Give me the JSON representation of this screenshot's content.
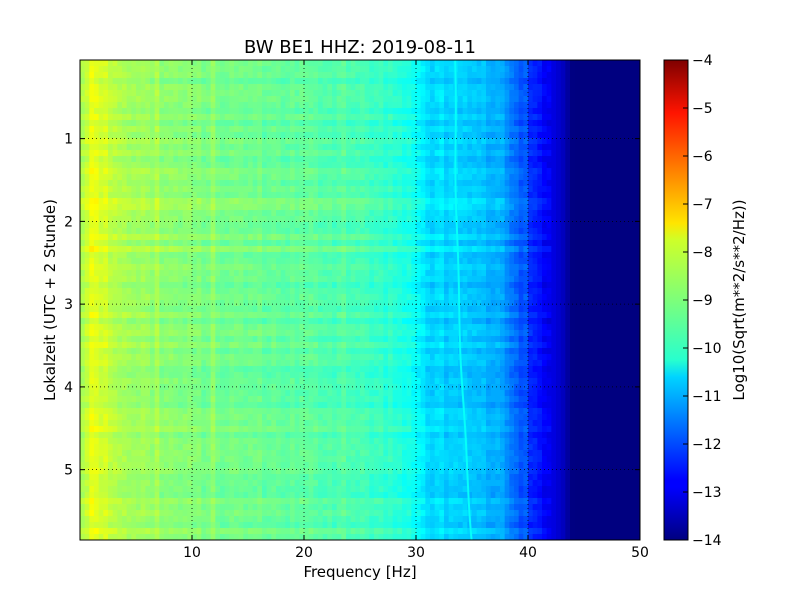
{
  "chart_data": {
    "type": "heatmap",
    "title": "BW BE1 HHZ: 2019-08-11",
    "xlabel": "Frequency [Hz]",
    "ylabel": "Lokalzeit (UTC + 2 Stunde)",
    "xlim": [
      0,
      50
    ],
    "ylim": [
      5.85,
      0.05
    ],
    "y_inverted": true,
    "x_ticks": [
      10,
      20,
      30,
      40,
      50
    ],
    "y_ticks": [
      1,
      2,
      3,
      4,
      5
    ],
    "grid": true,
    "colormap": "jet",
    "colorbar": {
      "label": "Log10(Sqrt(m**2/s**2/Hz))",
      "min": -14,
      "max": -4,
      "ticks": [
        -4,
        -5,
        -6,
        -7,
        -8,
        -9,
        -10,
        -11,
        -12,
        -13,
        -14
      ]
    },
    "spectral_levels": {
      "frequency_hz": [
        0,
        1,
        2,
        4,
        8,
        12,
        16,
        20,
        24,
        28,
        30,
        31,
        34,
        37,
        39,
        41,
        43,
        44,
        50
      ],
      "log10_amplitude": [
        -8.6,
        -8.0,
        -8.2,
        -8.6,
        -8.9,
        -9.1,
        -9.2,
        -9.35,
        -9.5,
        -9.8,
        -10.2,
        -10.6,
        -10.8,
        -11.0,
        -11.8,
        -12.6,
        -13.3,
        -14.0,
        -14.0
      ]
    },
    "resonance_line": {
      "start_hz": 33.5,
      "end_hz": 35.0,
      "log10_amplitude": -10.2
    }
  }
}
